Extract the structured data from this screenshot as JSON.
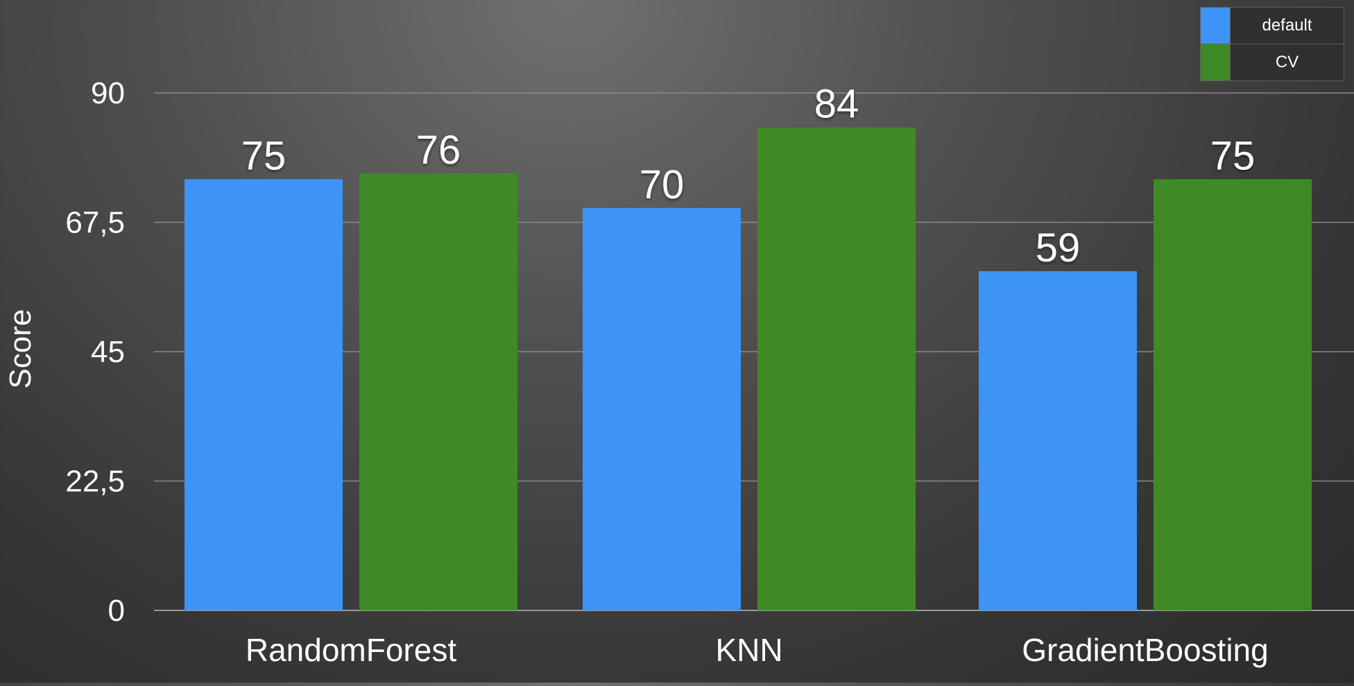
{
  "chart_data": {
    "type": "bar",
    "categories": [
      "RandomForest",
      "KNN",
      "GradientBoosting"
    ],
    "series": [
      {
        "name": "default",
        "values": [
          75,
          70,
          59
        ],
        "color": "#3d94f6"
      },
      {
        "name": "CV",
        "values": [
          76,
          84,
          75
        ],
        "color": "#3f8a27"
      }
    ],
    "data_labels": [
      [
        "75",
        "70",
        "59"
      ],
      [
        "76",
        "84",
        "75"
      ]
    ],
    "ylabel": "Score",
    "ylim": [
      0,
      90
    ],
    "yticks": [
      0,
      22.5,
      45,
      67.5,
      90
    ],
    "ytick_labels": [
      "0",
      "22,5",
      "45",
      "67,5",
      "90"
    ],
    "grid": true,
    "legend_position": "top-right"
  },
  "legend": {
    "items": [
      {
        "label": "default",
        "color": "#3d94f6"
      },
      {
        "label": "CV",
        "color": "#3f8a27"
      }
    ]
  }
}
